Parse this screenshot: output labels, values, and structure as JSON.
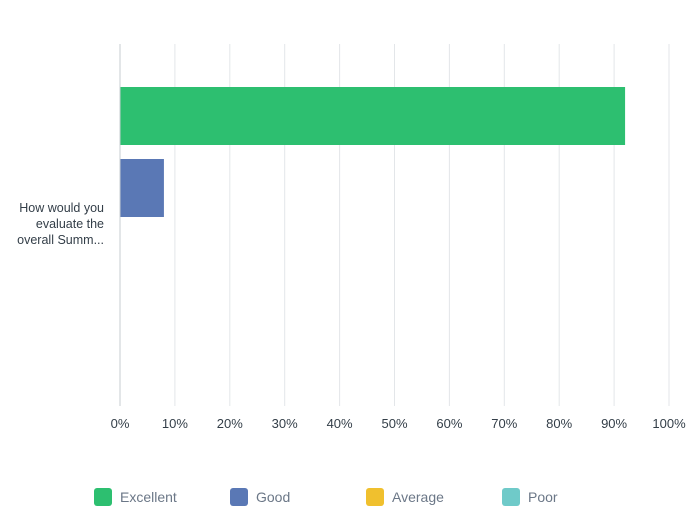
{
  "chart_data": {
    "type": "bar",
    "orientation": "horizontal",
    "categories": [
      "How would you\nevaluate the\noverall Summ..."
    ],
    "series": [
      {
        "name": "Excellent",
        "color": "#2dbf70",
        "values": [
          92
        ]
      },
      {
        "name": "Good",
        "color": "#5a78b5",
        "values": [
          8
        ]
      },
      {
        "name": "Average",
        "color": "#f0c02e",
        "values": [
          0
        ]
      },
      {
        "name": "Poor",
        "color": "#6fcac9",
        "values": [
          0
        ]
      }
    ],
    "xlim": [
      0,
      100
    ],
    "x_ticks": [
      "0%",
      "10%",
      "20%",
      "30%",
      "40%",
      "50%",
      "60%",
      "70%",
      "80%",
      "90%",
      "100%"
    ],
    "value_unit": "%",
    "title": "",
    "xlabel": "",
    "ylabel": "",
    "grid": true,
    "legend_position": "bottom",
    "axis_color": "#c7ccd1",
    "grid_color": "#e3e6e9"
  }
}
